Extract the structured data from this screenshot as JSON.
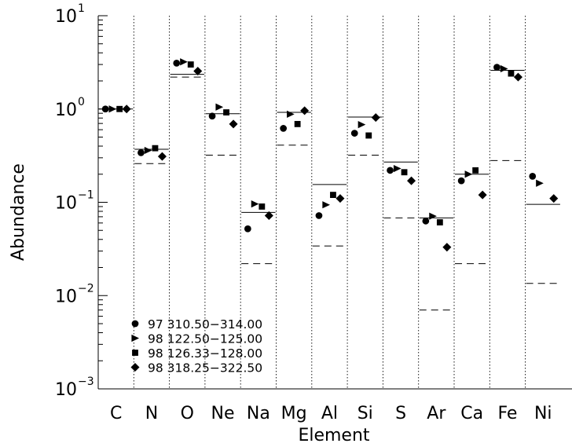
{
  "chart_data": {
    "type": "scatter",
    "xlabel": "Element",
    "ylabel": "Abundance",
    "y_scale": "log",
    "ylim": [
      0.001,
      10
    ],
    "y_ticks": [
      {
        "value": 10,
        "base": "10",
        "exp": "1"
      },
      {
        "value": 1,
        "base": "10",
        "exp": "0"
      },
      {
        "value": 0.1,
        "base": "10",
        "exp": "−1"
      },
      {
        "value": 0.01,
        "base": "10",
        "exp": "−2"
      },
      {
        "value": 0.001,
        "base": "10",
        "exp": "−3"
      }
    ],
    "categories": [
      "C",
      "N",
      "O",
      "Ne",
      "Na",
      "Mg",
      "Al",
      "Si",
      "S",
      "Ar",
      "Ca",
      "Fe",
      "Ni"
    ],
    "legend_position": "bottom-left",
    "series": [
      {
        "name": "97  310.50−314.00",
        "marker": "circle",
        "values": [
          1.0,
          0.34,
          3.1,
          0.84,
          0.052,
          0.62,
          0.072,
          0.55,
          0.22,
          0.063,
          0.17,
          2.8,
          0.19
        ]
      },
      {
        "name": "98  122.50−125.00",
        "marker": "triangle",
        "values": [
          1.0,
          0.36,
          3.2,
          1.05,
          0.096,
          0.88,
          0.094,
          0.68,
          0.23,
          0.071,
          0.2,
          2.7,
          0.16
        ]
      },
      {
        "name": "98  126.33−128.00",
        "marker": "square",
        "values": [
          1.0,
          0.38,
          3.0,
          0.92,
          0.09,
          0.69,
          0.12,
          0.52,
          0.21,
          0.061,
          0.22,
          2.4,
          null
        ]
      },
      {
        "name": "98  318.25−322.50",
        "marker": "diamond",
        "values": [
          1.0,
          0.31,
          2.55,
          0.69,
          0.072,
          0.96,
          0.11,
          0.81,
          0.17,
          0.033,
          0.12,
          2.2,
          0.11
        ]
      }
    ],
    "reference_solid": [
      1.0,
      0.37,
      2.35,
      0.89,
      0.078,
      0.92,
      0.155,
      0.82,
      0.27,
      0.068,
      0.2,
      2.6,
      0.095
    ],
    "reference_dashed": [
      null,
      0.26,
      2.2,
      0.32,
      0.022,
      0.41,
      0.034,
      0.32,
      0.068,
      0.007,
      0.022,
      0.28,
      0.0135
    ],
    "grid": false
  }
}
